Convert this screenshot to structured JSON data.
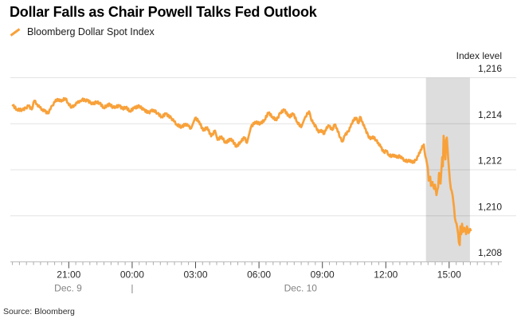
{
  "title": "Dollar Falls as Chair Powell Talks Fed Outlook",
  "legend": {
    "series_label": "Bloomberg Dollar Spot Index"
  },
  "source_note": "Source: Bloomberg",
  "colors": {
    "series_orange": "#F8A13A",
    "highlight_band": "#DDDDDD",
    "grid": "rgba(0,0,0,0.11)",
    "axis_line": "#BDBDBD",
    "minor_tick": "#ABABAB",
    "major_tick": "#4A4A4A",
    "tick_label": "#2B2B2B",
    "date_label": "#828282",
    "y_label": "#1F1F1F",
    "title_color": "#000000"
  },
  "chart_data": {
    "type": "line",
    "title": "Dollar Falls as Chair Powell Talks Fed Outlook",
    "ylabel": "Index level",
    "ylim": [
      1208,
      1216
    ],
    "grid": true,
    "legend_position": "top-left",
    "y_ticks": [
      {
        "value": 1216,
        "label": "1,216"
      },
      {
        "value": 1214,
        "label": "1,214"
      },
      {
        "value": 1212,
        "label": "1,212"
      },
      {
        "value": 1210,
        "label": "1,210"
      },
      {
        "value": 1208,
        "label": "1,208"
      }
    ],
    "x_axis": {
      "major_ticks": [
        {
          "t": 2.65,
          "label": "21:00"
        },
        {
          "t": 5.65,
          "label": "00:00"
        },
        {
          "t": 8.65,
          "label": "03:00"
        },
        {
          "t": 11.65,
          "label": "06:00"
        },
        {
          "t": 14.65,
          "label": "09:00"
        },
        {
          "t": 17.65,
          "label": "12:00"
        },
        {
          "t": 20.65,
          "label": "15:00"
        }
      ],
      "minor_tick_interval_hours": 0.3333
    },
    "date_labels": [
      {
        "t": 2.62,
        "label": "Dec. 9"
      },
      {
        "t": 5.65,
        "label": "|"
      },
      {
        "t": 13.62,
        "label": "Dec. 10"
      }
    ],
    "highlight_band": {
      "t_start": 19.55,
      "t_end": 21.63
    },
    "series": [
      {
        "name": "Bloomberg Dollar Spot Index",
        "points": [
          [
            0,
            1214.8
          ],
          [
            0.2,
            1214.62
          ],
          [
            0.45,
            1214.6
          ],
          [
            0.62,
            1214.68
          ],
          [
            0.75,
            1214.78
          ],
          [
            0.9,
            1214.62
          ],
          [
            1.02,
            1215.0
          ],
          [
            1.15,
            1214.85
          ],
          [
            1.28,
            1214.7
          ],
          [
            1.4,
            1214.62
          ],
          [
            1.51,
            1214.55
          ],
          [
            1.66,
            1214.45
          ],
          [
            1.78,
            1214.62
          ],
          [
            1.88,
            1214.8
          ],
          [
            2.0,
            1214.95
          ],
          [
            2.11,
            1215.08
          ],
          [
            2.22,
            1214.98
          ],
          [
            2.34,
            1215.03
          ],
          [
            2.49,
            1215.1
          ],
          [
            2.62,
            1214.9
          ],
          [
            2.79,
            1214.7
          ],
          [
            2.92,
            1214.82
          ],
          [
            3.05,
            1214.9
          ],
          [
            3.18,
            1215.0
          ],
          [
            3.28,
            1215.05
          ],
          [
            3.42,
            1215.02
          ],
          [
            3.54,
            1215.0
          ],
          [
            3.68,
            1214.92
          ],
          [
            3.81,
            1214.85
          ],
          [
            3.95,
            1214.95
          ],
          [
            4.11,
            1214.9
          ],
          [
            4.3,
            1214.7
          ],
          [
            4.45,
            1214.78
          ],
          [
            4.6,
            1214.85
          ],
          [
            4.75,
            1214.7
          ],
          [
            4.86,
            1214.75
          ],
          [
            5.05,
            1214.77
          ],
          [
            5.2,
            1214.65
          ],
          [
            5.35,
            1214.72
          ],
          [
            5.54,
            1214.55
          ],
          [
            5.75,
            1214.68
          ],
          [
            5.99,
            1214.77
          ],
          [
            6.2,
            1214.6
          ],
          [
            6.44,
            1214.48
          ],
          [
            6.55,
            1214.55
          ],
          [
            6.67,
            1214.6
          ],
          [
            6.85,
            1214.45
          ],
          [
            7.05,
            1214.3
          ],
          [
            7.24,
            1214.43
          ],
          [
            7.5,
            1214.25
          ],
          [
            7.63,
            1214.1
          ],
          [
            7.76,
            1213.97
          ],
          [
            7.99,
            1213.85
          ],
          [
            8.18,
            1214.0
          ],
          [
            8.3,
            1213.9
          ],
          [
            8.44,
            1213.8
          ],
          [
            8.63,
            1214.25
          ],
          [
            8.82,
            1214.1
          ],
          [
            9.01,
            1213.7
          ],
          [
            9.2,
            1213.85
          ],
          [
            9.39,
            1213.45
          ],
          [
            9.57,
            1213.7
          ],
          [
            9.69,
            1213.3
          ],
          [
            9.88,
            1213.45
          ],
          [
            10.06,
            1213.17
          ],
          [
            10.33,
            1213.35
          ],
          [
            10.59,
            1213.0
          ],
          [
            10.78,
            1213.23
          ],
          [
            10.97,
            1213.4
          ],
          [
            11.08,
            1213.17
          ],
          [
            11.27,
            1213.85
          ],
          [
            11.46,
            1214.08
          ],
          [
            11.72,
            1214.0
          ],
          [
            11.91,
            1214.17
          ],
          [
            12.1,
            1214.48
          ],
          [
            12.29,
            1214.3
          ],
          [
            12.48,
            1214.15
          ],
          [
            12.66,
            1214.48
          ],
          [
            12.85,
            1214.6
          ],
          [
            13.08,
            1214.3
          ],
          [
            13.27,
            1214.43
          ],
          [
            13.46,
            1214.08
          ],
          [
            13.65,
            1213.85
          ],
          [
            13.84,
            1214.3
          ],
          [
            14.02,
            1214.54
          ],
          [
            14.1,
            1214.26
          ],
          [
            14.21,
            1214.02
          ],
          [
            14.36,
            1213.85
          ],
          [
            14.47,
            1213.62
          ],
          [
            14.59,
            1213.73
          ],
          [
            14.74,
            1213.56
          ],
          [
            14.85,
            1213.85
          ],
          [
            14.97,
            1213.9
          ],
          [
            15.12,
            1213.73
          ],
          [
            15.23,
            1213.97
          ],
          [
            15.34,
            1213.8
          ],
          [
            15.49,
            1213.4
          ],
          [
            15.6,
            1213.23
          ],
          [
            15.72,
            1213.5
          ],
          [
            15.87,
            1213.66
          ],
          [
            15.98,
            1213.85
          ],
          [
            16.1,
            1214.15
          ],
          [
            16.25,
            1214.26
          ],
          [
            16.36,
            1214.02
          ],
          [
            16.43,
            1214.3
          ],
          [
            16.55,
            1214.08
          ],
          [
            16.66,
            1213.8
          ],
          [
            16.81,
            1213.5
          ],
          [
            16.92,
            1213.33
          ],
          [
            17.04,
            1213.45
          ],
          [
            17.19,
            1213.28
          ],
          [
            17.3,
            1213.17
          ],
          [
            17.41,
            1212.99
          ],
          [
            17.56,
            1212.76
          ],
          [
            17.68,
            1212.82
          ],
          [
            17.79,
            1212.65
          ],
          [
            17.94,
            1212.59
          ],
          [
            18.05,
            1212.65
          ],
          [
            18.17,
            1212.53
          ],
          [
            18.32,
            1212.6
          ],
          [
            18.43,
            1212.48
          ],
          [
            18.54,
            1212.42
          ],
          [
            18.7,
            1212.37
          ],
          [
            18.81,
            1212.42
          ],
          [
            18.92,
            1212.3
          ],
          [
            19.07,
            1212.42
          ],
          [
            19.19,
            1212.6
          ],
          [
            19.3,
            1212.87
          ],
          [
            19.45,
            1213.1
          ],
          [
            19.49,
            1212.76
          ],
          [
            19.56,
            1212.48
          ],
          [
            19.64,
            1212.08
          ],
          [
            19.68,
            1211.53
          ],
          [
            19.75,
            1211.7
          ],
          [
            19.79,
            1211.3
          ],
          [
            19.86,
            1211.47
          ],
          [
            19.94,
            1211.17
          ],
          [
            19.98,
            1211.35
          ],
          [
            20.05,
            1210.9
          ],
          [
            20.13,
            1211.25
          ],
          [
            20.17,
            1211.87
          ],
          [
            20.24,
            1211.4
          ],
          [
            20.32,
            1212.55
          ],
          [
            20.35,
            1212.15
          ],
          [
            20.39,
            1213.48
          ],
          [
            20.47,
            1212.45
          ],
          [
            20.51,
            1213.3
          ],
          [
            20.54,
            1213.4
          ],
          [
            20.62,
            1212.3
          ],
          [
            20.69,
            1211.47
          ],
          [
            20.73,
            1211.17
          ],
          [
            20.81,
            1210.9
          ],
          [
            20.88,
            1210.38
          ],
          [
            20.92,
            1209.9
          ],
          [
            21.0,
            1209.66
          ],
          [
            21.07,
            1209.25
          ],
          [
            21.11,
            1208.85
          ],
          [
            21.15,
            1208.73
          ],
          [
            21.18,
            1209.54
          ],
          [
            21.22,
            1209.2
          ],
          [
            21.26,
            1209.66
          ],
          [
            21.3,
            1209.3
          ],
          [
            21.37,
            1209.48
          ],
          [
            21.45,
            1209.2
          ],
          [
            21.49,
            1209.54
          ],
          [
            21.56,
            1209.25
          ],
          [
            21.64,
            1209.43
          ],
          [
            21.67,
            1209.38
          ]
        ]
      }
    ]
  }
}
